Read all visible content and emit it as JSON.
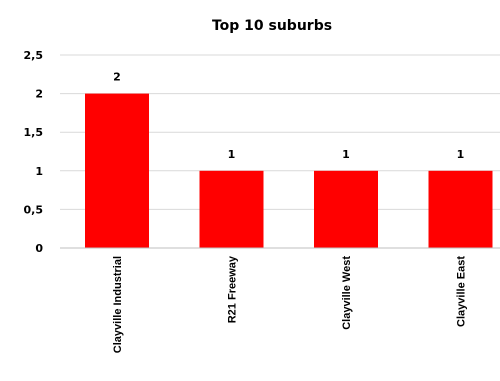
{
  "chart_data": {
    "type": "bar",
    "title": "Top 10 suburbs",
    "categories": [
      "Clayville Industrial",
      "R21 Freeway",
      "Clayville West",
      "Clayville East"
    ],
    "values": [
      2,
      1,
      1,
      1
    ],
    "data_labels": [
      "2",
      "1",
      "1",
      "1"
    ],
    "ylim": [
      0,
      2.5
    ],
    "yticks": [
      "0",
      "0,5",
      "1",
      "1,5",
      "2",
      "2,5"
    ],
    "grid": true,
    "legend": "none",
    "colors": {
      "bar": "#ff0000",
      "grid": "#d9d9d9",
      "axis": "#bfbfbf"
    }
  }
}
